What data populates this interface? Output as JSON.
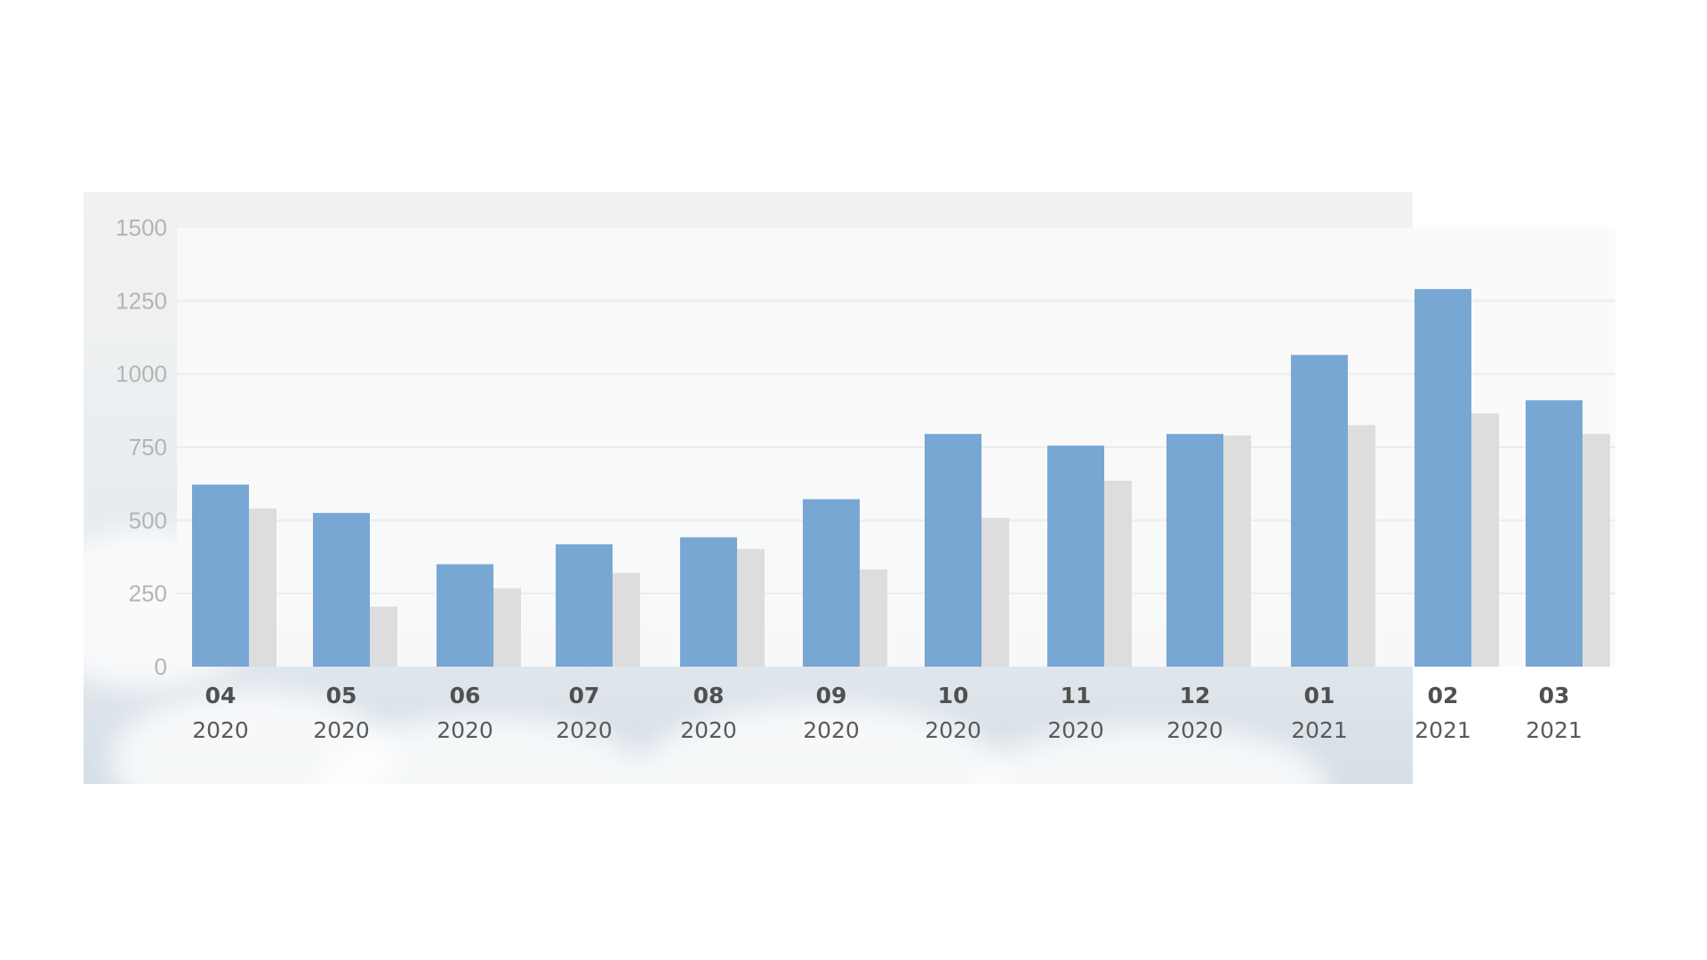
{
  "colors": {
    "primary_series": "#78a7d4",
    "secondary_series": "#dddddd",
    "gridline": "#ececec",
    "axis_tick_text": "#b4b4b4",
    "category_text": "#505050"
  },
  "chart_data": {
    "type": "bar",
    "title": "",
    "xlabel": "",
    "ylabel": "",
    "ylim": [
      0,
      1500
    ],
    "yticks": [
      0,
      250,
      500,
      750,
      1000,
      1250,
      1500
    ],
    "grid": true,
    "legend": "none",
    "categories": [
      {
        "month": "04",
        "year": "2020"
      },
      {
        "month": "05",
        "year": "2020"
      },
      {
        "month": "06",
        "year": "2020"
      },
      {
        "month": "07",
        "year": "2020"
      },
      {
        "month": "08",
        "year": "2020"
      },
      {
        "month": "09",
        "year": "2020"
      },
      {
        "month": "10",
        "year": "2020"
      },
      {
        "month": "11",
        "year": "2020"
      },
      {
        "month": "12",
        "year": "2020"
      },
      {
        "month": "01",
        "year": "2021"
      },
      {
        "month": "02",
        "year": "2021"
      },
      {
        "month": "03",
        "year": "2021"
      }
    ],
    "series": [
      {
        "values": [
          622,
          525,
          350,
          418,
          442,
          572,
          795,
          755,
          795,
          1065,
          1290,
          910
        ]
      },
      {
        "values": [
          540,
          205,
          268,
          320,
          402,
          332,
          508,
          635,
          790,
          825,
          865,
          795
        ]
      }
    ]
  }
}
